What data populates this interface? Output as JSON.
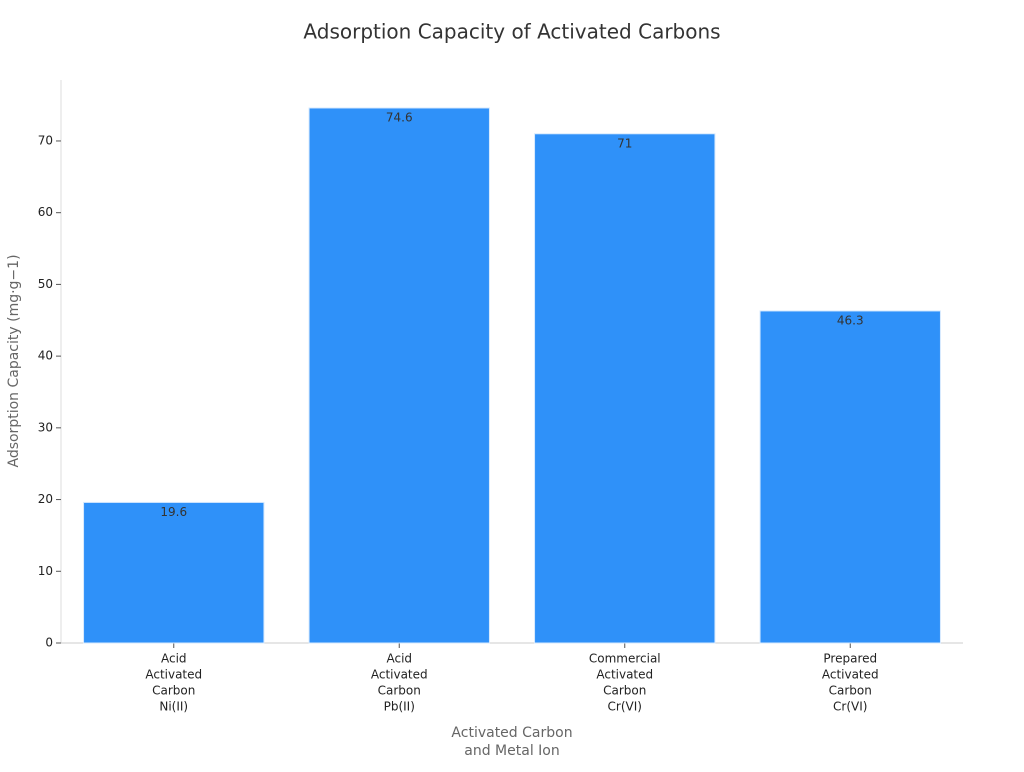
{
  "chart_data": {
    "type": "bar",
    "title": "Adsorption Capacity of Activated Carbons",
    "x_label": [
      "Activated Carbon",
      "and Metal Ion"
    ],
    "y_label": "Adsorption Capacity (mg·g−1)",
    "categories": [
      [
        "Acid",
        "Activated",
        "Carbon",
        "Ni(II)"
      ],
      [
        "Acid",
        "Activated",
        "Carbon",
        "Pb(II)"
      ],
      [
        "Commercial",
        "Activated",
        "Carbon",
        "Cr(VI)"
      ],
      [
        "Prepared",
        "Activated",
        "Carbon",
        "Cr(VI)"
      ]
    ],
    "values": [
      19.6,
      74.6,
      71,
      46.3
    ],
    "color": "#2f91f9",
    "ylim": [
      0,
      78.5
    ],
    "yticks": [
      0,
      10,
      20,
      30,
      40,
      50,
      60,
      70
    ]
  }
}
